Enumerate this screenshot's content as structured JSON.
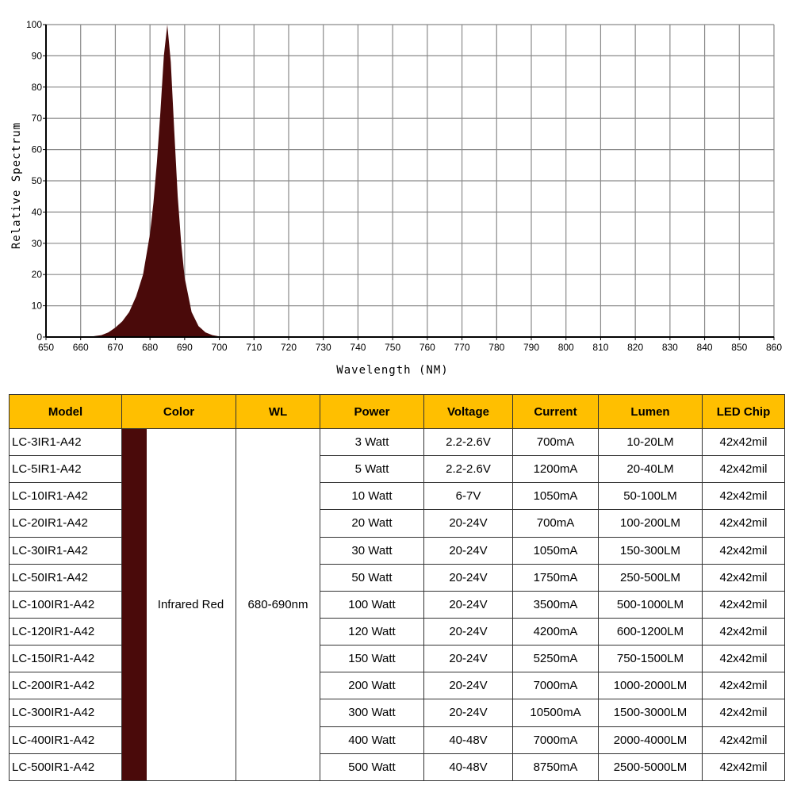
{
  "chart_data": {
    "type": "area",
    "xlabel": "Wavelength (NM)",
    "ylabel": "Relative Spectrum",
    "xlim": [
      650,
      860
    ],
    "ylim": [
      0,
      100
    ],
    "x_ticks": [
      "650",
      "660",
      "670",
      "680",
      "690",
      "700",
      "710",
      "720",
      "730",
      "740",
      "750",
      "760",
      "770",
      "780",
      "790",
      "800",
      "810",
      "820",
      "830",
      "840",
      "850",
      "860"
    ],
    "y_ticks": [
      "0",
      "10",
      "20",
      "30",
      "40",
      "50",
      "60",
      "70",
      "80",
      "90",
      "100"
    ],
    "grid": true,
    "fill_color": "#4a0a0a",
    "x": [
      662,
      666,
      668,
      670,
      672,
      674,
      676,
      678,
      680,
      681,
      682,
      683,
      684,
      685,
      686,
      687,
      688,
      689,
      690,
      692,
      694,
      696,
      698,
      700,
      702
    ],
    "y": [
      0,
      0.6,
      1.5,
      3,
      5,
      8,
      13,
      20,
      33,
      43,
      56,
      72,
      90,
      100,
      88,
      66,
      45,
      30,
      19,
      8,
      3.5,
      1.5,
      0.6,
      0.2,
      0
    ]
  },
  "table": {
    "header_color": "#ffbf00",
    "swatch_color": "#4a0a0a",
    "headers": [
      "Model",
      "Color",
      "WL",
      "Power",
      "Voltage",
      "Current",
      "Lumen",
      "LED Chip"
    ],
    "color_name": "Infrared Red",
    "wavelength": "680-690nm",
    "chip": "42x42mil",
    "rows": [
      {
        "model": "LC-3IR1-A42",
        "power": "3 Watt",
        "voltage": "2.2-2.6V",
        "current": "700mA",
        "lumen": "10-20LM"
      },
      {
        "model": "LC-5IR1-A42",
        "power": "5 Watt",
        "voltage": "2.2-2.6V",
        "current": "1200mA",
        "lumen": "20-40LM"
      },
      {
        "model": "LC-10IR1-A42",
        "power": "10 Watt",
        "voltage": "6-7V",
        "current": "1050mA",
        "lumen": "50-100LM"
      },
      {
        "model": "LC-20IR1-A42",
        "power": "20 Watt",
        "voltage": "20-24V",
        "current": "700mA",
        "lumen": "100-200LM"
      },
      {
        "model": "LC-30IR1-A42",
        "power": "30 Watt",
        "voltage": "20-24V",
        "current": "1050mA",
        "lumen": "150-300LM"
      },
      {
        "model": "LC-50IR1-A42",
        "power": "50 Watt",
        "voltage": "20-24V",
        "current": "1750mA",
        "lumen": "250-500LM"
      },
      {
        "model": "LC-100IR1-A42",
        "power": "100 Watt",
        "voltage": "20-24V",
        "current": "3500mA",
        "lumen": "500-1000LM"
      },
      {
        "model": "LC-120IR1-A42",
        "power": "120 Watt",
        "voltage": "20-24V",
        "current": "4200mA",
        "lumen": "600-1200LM"
      },
      {
        "model": "LC-150IR1-A42",
        "power": "150 Watt",
        "voltage": "20-24V",
        "current": "5250mA",
        "lumen": "750-1500LM"
      },
      {
        "model": "LC-200IR1-A42",
        "power": "200 Watt",
        "voltage": "20-24V",
        "current": "7000mA",
        "lumen": "1000-2000LM"
      },
      {
        "model": "LC-300IR1-A42",
        "power": "300 Watt",
        "voltage": "20-24V",
        "current": "10500mA",
        "lumen": "1500-3000LM"
      },
      {
        "model": "LC-400IR1-A42",
        "power": "400 Watt",
        "voltage": "40-48V",
        "current": "7000mA",
        "lumen": "2000-4000LM"
      },
      {
        "model": "LC-500IR1-A42",
        "power": "500 Watt",
        "voltage": "40-48V",
        "current": "8750mA",
        "lumen": "2500-5000LM"
      }
    ]
  }
}
